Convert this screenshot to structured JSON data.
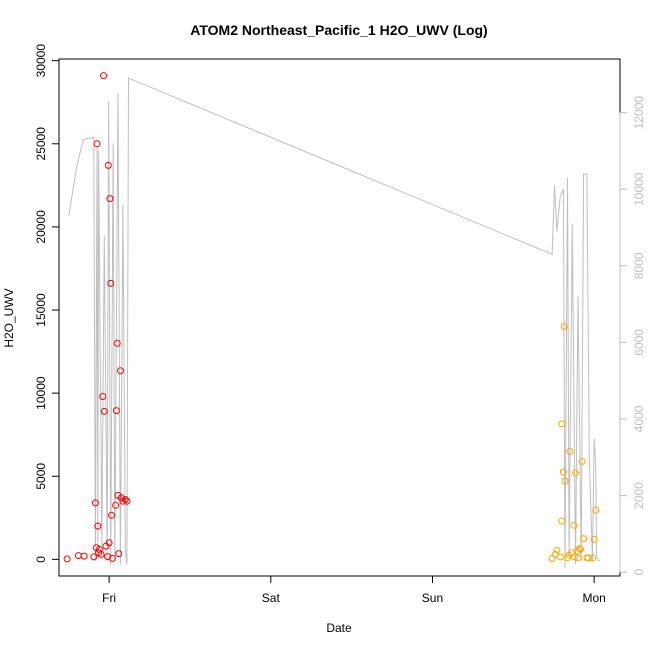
{
  "chart_data": {
    "type": "scatter",
    "title": "ATOM2 Northeast_Pacific_1 H2O_UWV (Log)",
    "xlabel": "Date",
    "ylabel": "H2O_UWV",
    "x_unit": "days",
    "xlim": [
      -0.31,
      3.16
    ],
    "ylim": [
      -1000,
      30100
    ],
    "y2lim": [
      -100,
      13400
    ],
    "x_ticks": [
      {
        "x": 0,
        "label": "Fri"
      },
      {
        "x": 1,
        "label": "Sat"
      },
      {
        "x": 2,
        "label": "Sun"
      },
      {
        "x": 3,
        "label": "Mon"
      }
    ],
    "y_ticks": [
      0,
      5000,
      10000,
      15000,
      20000,
      25000,
      30000
    ],
    "y2_ticks": [
      0,
      2000,
      4000,
      6000,
      8000,
      10000,
      12000
    ],
    "colors": {
      "red_series": "#ff0000",
      "orange_series": "#ffa500",
      "line": "#bebebe",
      "axis": "#000000",
      "right_axis": "#bebebe"
    },
    "series": [
      {
        "color": "#ff0000",
        "x": [
          -0.26,
          -0.19,
          -0.155,
          -0.095,
          -0.085,
          -0.08,
          -0.075,
          -0.07,
          -0.065,
          -0.06,
          -0.05,
          -0.04,
          -0.035,
          -0.03,
          -0.02,
          -0.01,
          -0.005,
          0.0,
          0.005,
          0.01,
          0.015,
          0.02,
          0.04,
          0.045,
          0.05,
          0.055,
          0.06,
          0.07,
          0.075,
          0.085,
          0.1,
          0.11
        ],
        "y": [
          30,
          230,
          200,
          150,
          3400,
          700,
          25000,
          2000,
          400,
          600,
          300,
          9800,
          29100,
          8900,
          800,
          170,
          23700,
          1000,
          21700,
          16600,
          2650,
          60,
          3250,
          8950,
          13000,
          3850,
          350,
          11350,
          3700,
          3500,
          3600,
          3500
        ]
      },
      {
        "color": "#ffa500",
        "x": [
          2.74,
          2.76,
          2.77,
          2.79,
          2.8,
          2.8,
          2.81,
          2.815,
          2.82,
          2.835,
          2.845,
          2.85,
          2.86,
          2.875,
          2.88,
          2.885,
          2.895,
          2.9,
          2.91,
          2.915,
          2.925,
          2.935,
          2.955,
          2.965,
          2.99,
          3.0,
          3.01
        ],
        "y": [
          50,
          300,
          550,
          150,
          8150,
          2300,
          5250,
          14000,
          4700,
          100,
          250,
          6500,
          400,
          2050,
          150,
          5200,
          500,
          100,
          650,
          600,
          5900,
          1250,
          100,
          80,
          80,
          1200,
          2950
        ]
      }
    ],
    "line": {
      "color": "#bebebe",
      "axis": "right",
      "x": [
        -0.25,
        -0.2,
        -0.16,
        -0.095,
        -0.085,
        -0.075,
        -0.07,
        -0.065,
        -0.045,
        -0.03,
        -0.012,
        -0.003,
        0.01,
        0.025,
        0.035,
        0.055,
        0.07,
        0.085,
        0.1,
        0.11,
        0.12,
        2.74,
        2.755,
        2.77,
        2.79,
        2.81,
        2.82,
        2.835,
        2.845,
        2.865,
        2.885,
        2.9,
        2.92,
        2.935,
        2.955,
        2.97,
        2.99,
        3.0,
        3.01,
        3.015,
        3.025,
        3.035
      ],
      "y": [
        9300,
        10600,
        11300,
        11350,
        300,
        11100,
        400,
        11000,
        700,
        8800,
        300,
        12300,
        200,
        11200,
        300,
        12500,
        200,
        9600,
        600,
        200,
        12900,
        8300,
        10100,
        8900,
        9800,
        10000,
        100,
        10300,
        400,
        9100,
        200,
        7200,
        300,
        10400,
        10400,
        3000,
        300,
        3500,
        2800,
        400,
        300,
        300
      ]
    }
  }
}
